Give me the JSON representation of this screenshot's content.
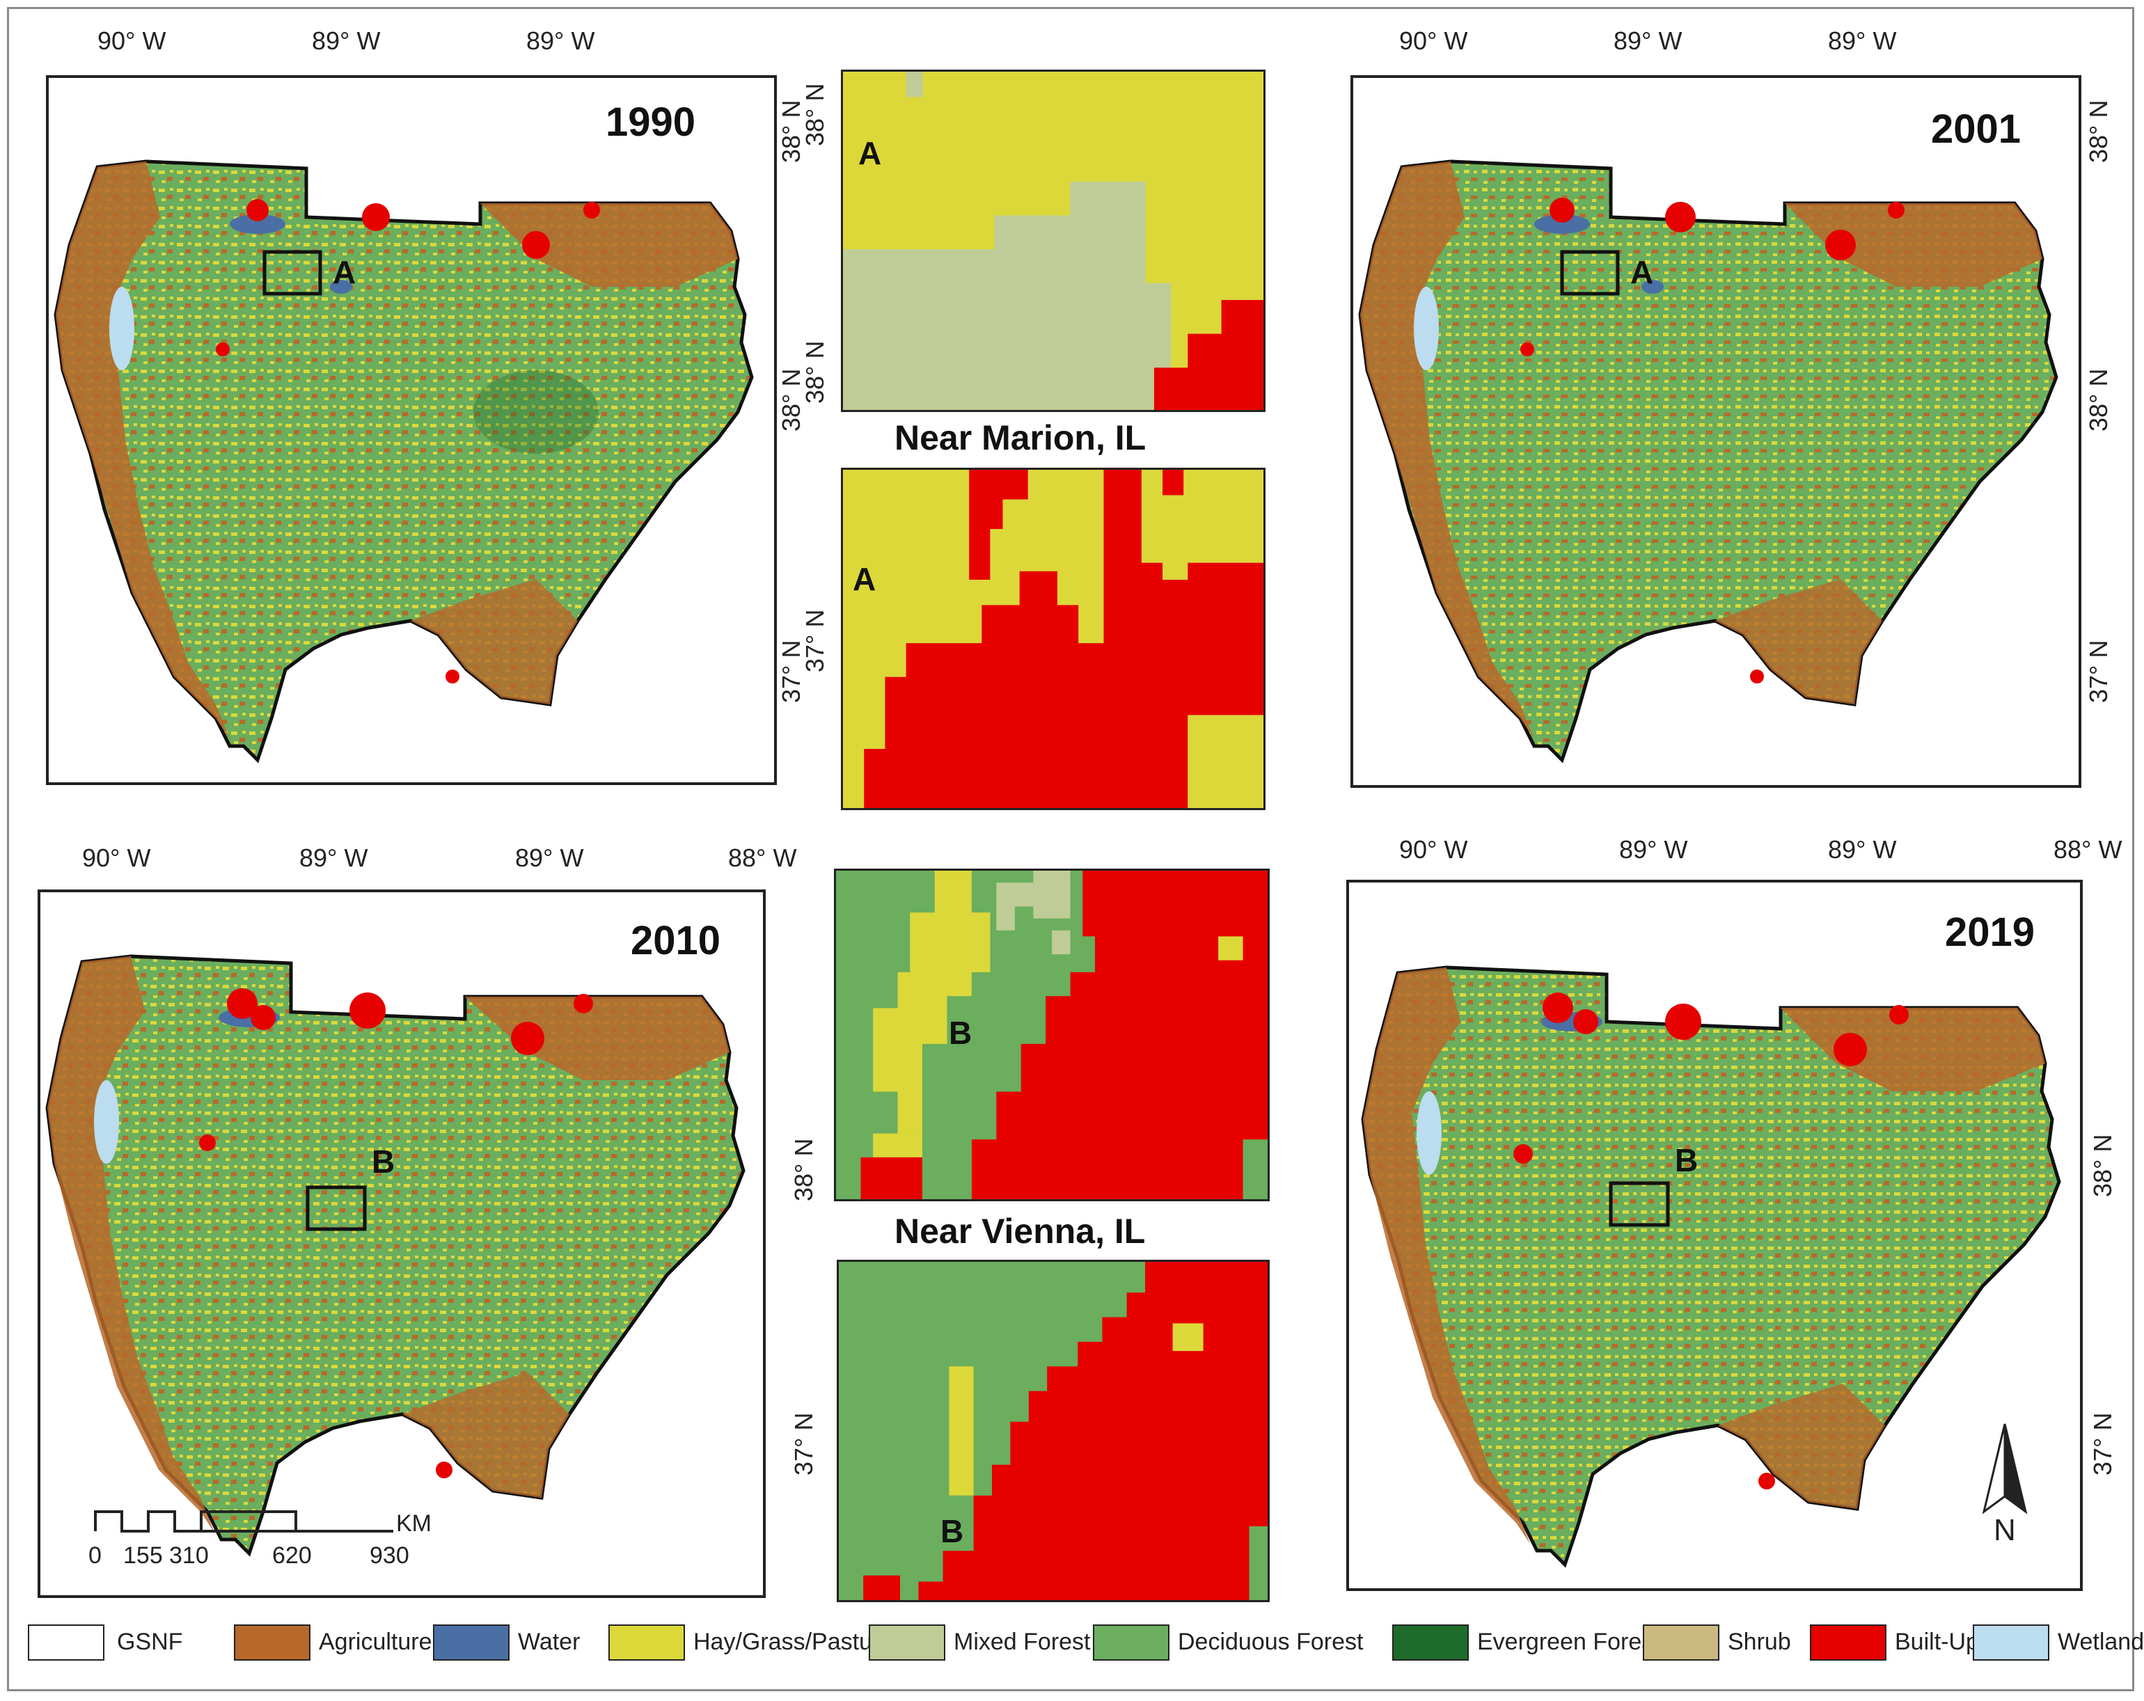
{
  "panels": {
    "p1990": {
      "year": "1990",
      "top_ticks": [
        "90° W",
        "89° W",
        "89° W"
      ],
      "side_ticks": [
        "38° N",
        "38° N",
        "37° N"
      ],
      "box_label": "A"
    },
    "p2001": {
      "year": "2001",
      "top_ticks": [
        "90° W",
        "89° W",
        "89° W"
      ],
      "side_ticks": [
        "38° N",
        "38° N",
        "37° N"
      ],
      "box_label": "A"
    },
    "p2010": {
      "year": "2010",
      "top_ticks": [
        "90° W",
        "89° W",
        "89° W",
        "88° W"
      ],
      "side_ticks": [
        "38° N",
        "37° N"
      ],
      "box_label": "B"
    },
    "p2019": {
      "year": "2019",
      "top_ticks": [
        "90° W",
        "89° W",
        "89° W",
        "88° W"
      ],
      "side_ticks": [
        "38° N",
        "37° N"
      ],
      "box_label": "B"
    }
  },
  "insets": {
    "marion_title": "Near Marion, IL",
    "vienna_title": "Near Vienna, IL",
    "marion_top_letter": "A",
    "marion_bottom_letter": "A",
    "vienna_top_letter": "B",
    "vienna_bottom_letter": "B",
    "marion_top_tick": "38° N",
    "marion_top_tick2": "38° N",
    "marion_bottom_tick": "37° N",
    "vienna_top_tick": "38° N",
    "vienna_bottom_tick": "37° N"
  },
  "scalebar": {
    "labels": [
      "0",
      "155",
      "310",
      "620",
      "930"
    ],
    "unit": "KM"
  },
  "north_label": "N",
  "legend": [
    {
      "label": "GSNF",
      "color": "#ffffff"
    },
    {
      "label": "Agriculture",
      "color": "#b8692a"
    },
    {
      "label": "Water",
      "color": "#4a6fa5"
    },
    {
      "label": "Hay/Grass/Pasture",
      "color": "#dcd83a"
    },
    {
      "label": "Mixed Forest",
      "color": "#bfcc97"
    },
    {
      "label": "Deciduous Forest",
      "color": "#6aae5e"
    },
    {
      "label": "Evergreen Forest",
      "color": "#1f6b2c"
    },
    {
      "label": "Shrub",
      "color": "#ccb982"
    },
    {
      "label": "Built-Up",
      "color": "#e60000"
    },
    {
      "label": "Wetlands",
      "color": "#bcdcf0"
    }
  ],
  "colors": {
    "agriculture": "#b8692a",
    "hay": "#dcd83a",
    "deciduous": "#6aae5e",
    "mixed": "#bfcc97",
    "builtup": "#e60000",
    "water": "#4a6fa5",
    "wetlands": "#bcdcf0",
    "evergreen": "#1f6b2c"
  }
}
